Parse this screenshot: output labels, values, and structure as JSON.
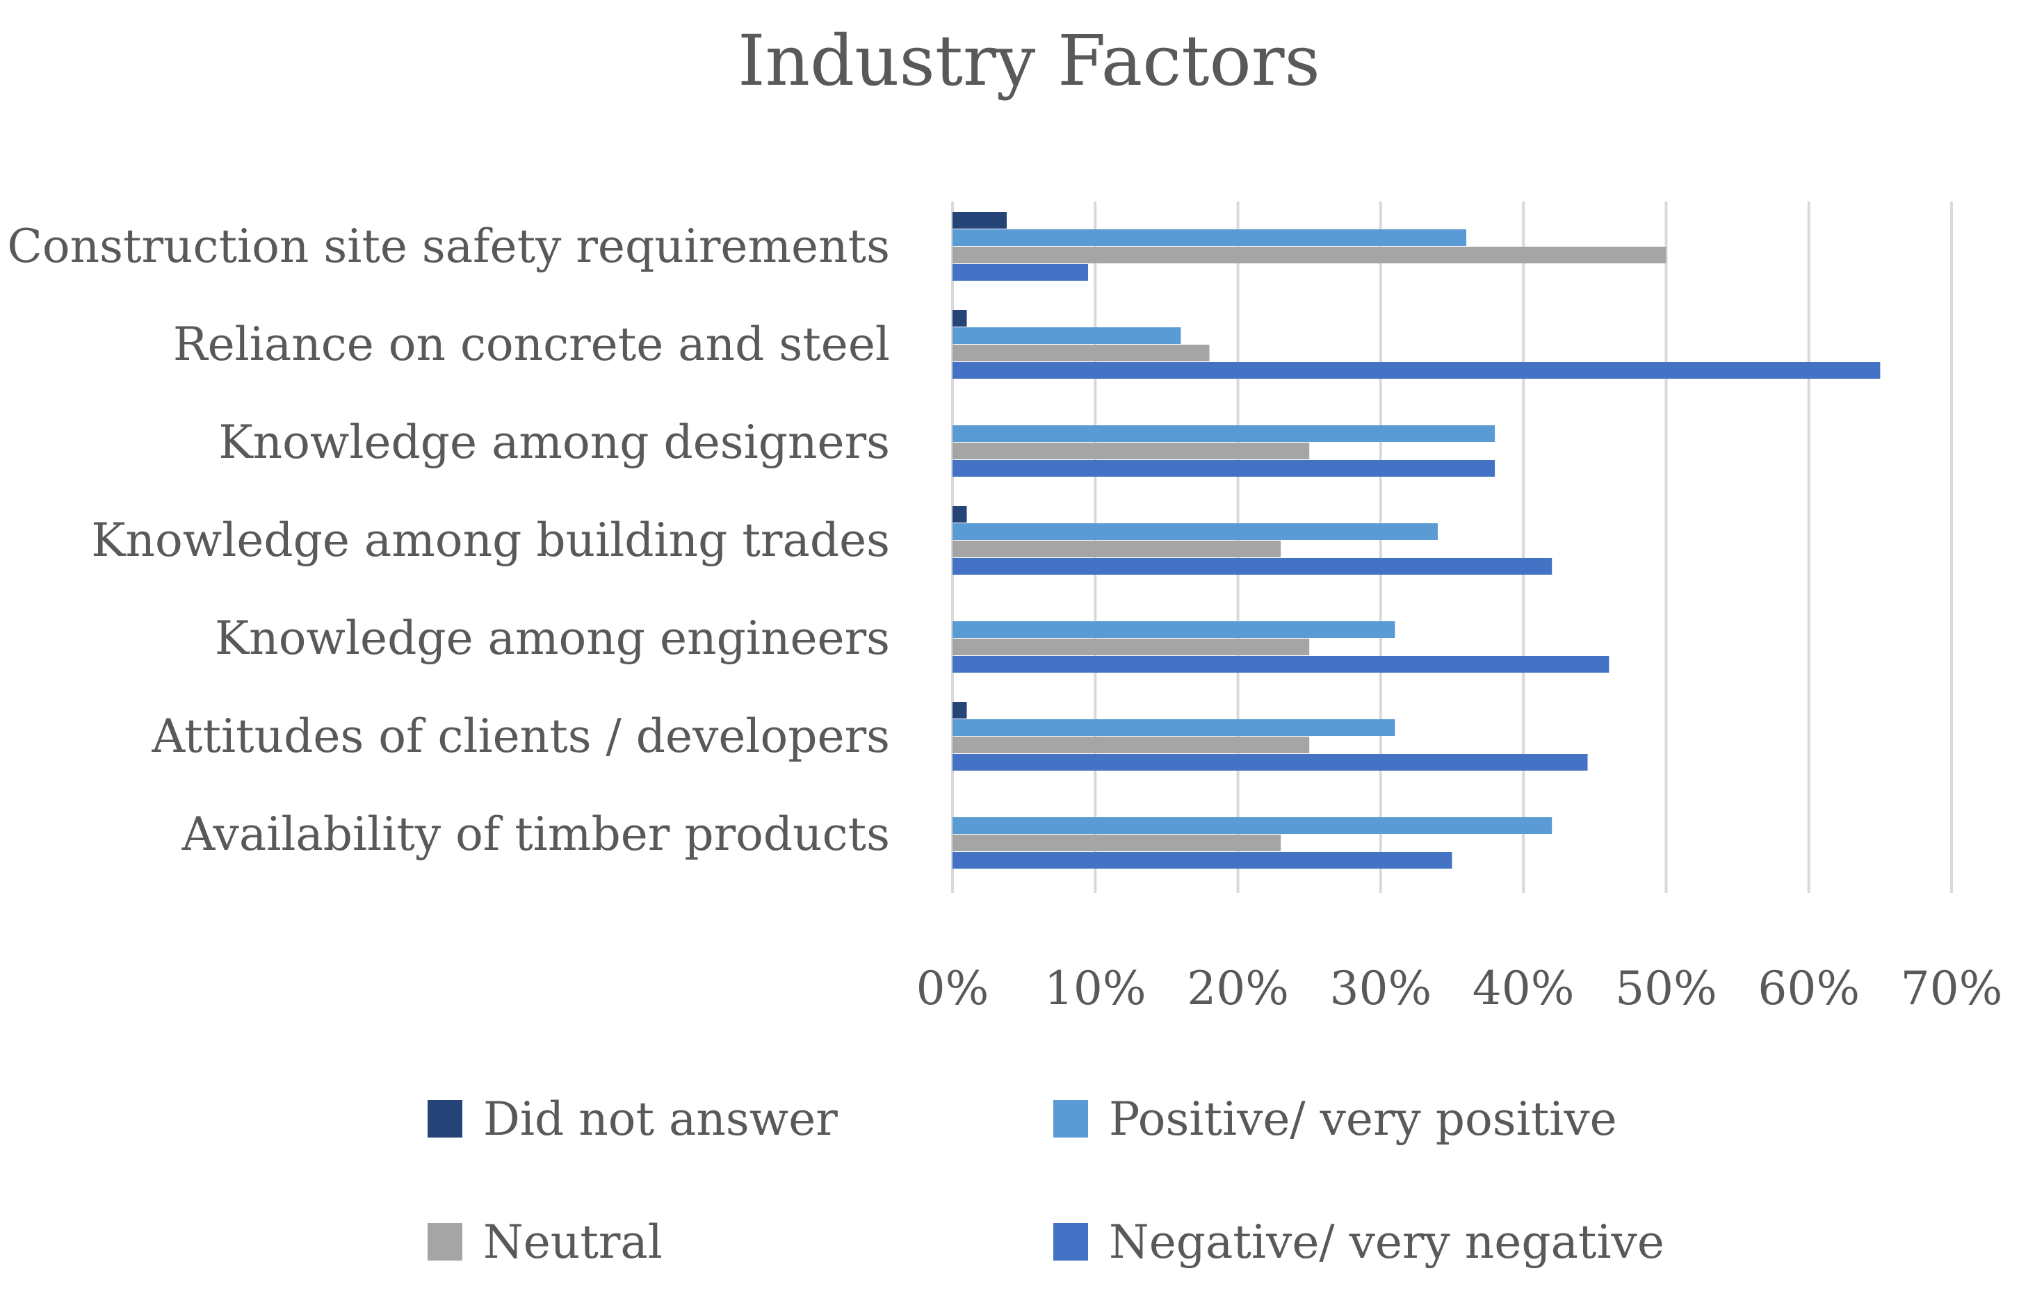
{
  "chart_data": {
    "type": "bar",
    "orientation": "horizontal",
    "title": "Industry Factors",
    "xlabel": "",
    "ylabel": "",
    "xlim": [
      0,
      70
    ],
    "x_ticks": [
      "0%",
      "10%",
      "20%",
      "30%",
      "40%",
      "50%",
      "60%",
      "70%"
    ],
    "grid": "vertical",
    "legend_position": "bottom",
    "categories": [
      "Construction site safety requirements",
      "Reliance on concrete and steel",
      "Knowledge among designers",
      "Knowledge among building trades",
      "Knowledge among engineers",
      "Attitudes of clients / developers",
      "Availability of timber products"
    ],
    "series": [
      {
        "name": "Did not answer",
        "color": "#264478",
        "values": [
          3.8,
          1.0,
          0,
          1.0,
          0,
          1.0,
          0
        ]
      },
      {
        "name": "Positive/ very positive",
        "color": "#5B9BD5",
        "values": [
          36,
          16,
          38,
          34,
          31,
          31,
          42
        ]
      },
      {
        "name": "Neutral",
        "color": "#A5A5A5",
        "values": [
          50,
          18,
          25,
          23,
          25,
          25,
          23
        ]
      },
      {
        "name": "Negative/ very negative",
        "color": "#4472C4",
        "values": [
          9.5,
          65,
          38,
          42,
          46,
          44.5,
          35
        ]
      }
    ]
  }
}
